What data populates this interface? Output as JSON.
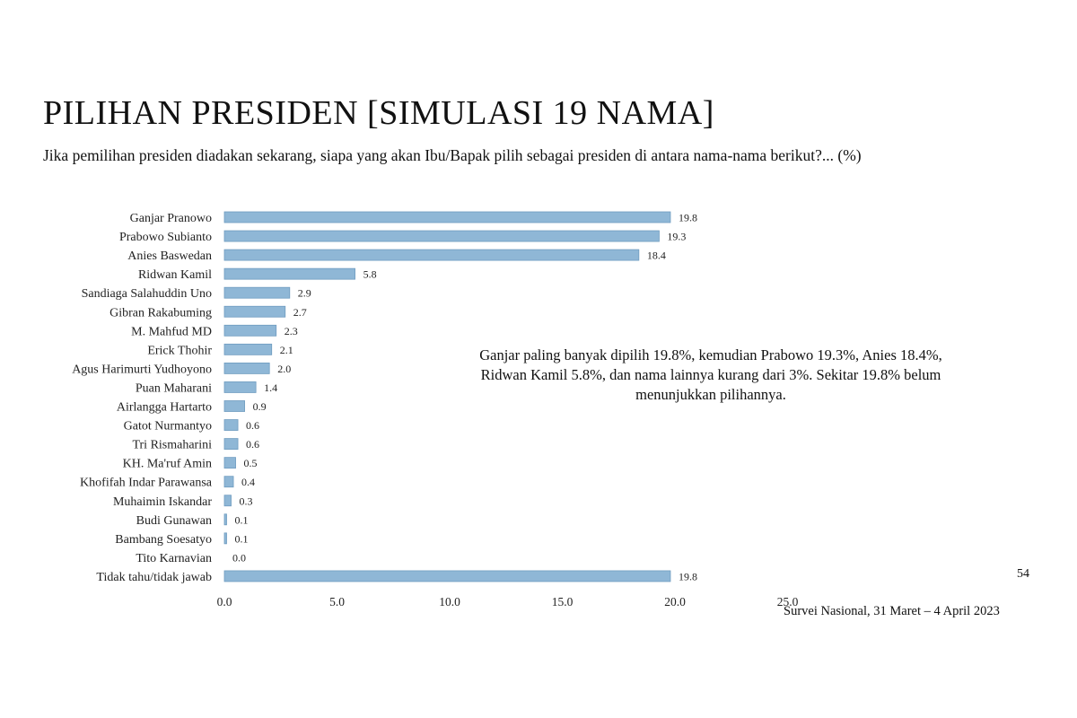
{
  "header": {
    "title": "PILIHAN PRESIDEN [SIMULASI 19 NAMA]",
    "subtitle": "Jika pemilihan presiden diadakan sekarang, siapa yang akan Ibu/Bapak pilih sebagai presiden di antara nama-nama berikut?... (%)"
  },
  "annotation": "Ganjar paling banyak dipilih 19.8%, kemudian Prabowo 19.3%, Anies 18.4%, Ridwan Kamil 5.8%, dan nama lainnya kurang dari 3%. Sekitar 19.8% belum menunjukkan pilihannya.",
  "footer": {
    "page_number": "54",
    "source": "Survei Nasional, 31 Maret – 4 April 2023"
  },
  "chart_data": {
    "type": "bar",
    "orientation": "horizontal",
    "categories": [
      "Ganjar Pranowo",
      "Prabowo Subianto",
      "Anies Baswedan",
      "Ridwan Kamil",
      "Sandiaga Salahuddin Uno",
      "Gibran Rakabuming",
      "M. Mahfud MD",
      "Erick Thohir",
      "Agus Harimurti Yudhoyono",
      "Puan Maharani",
      "Airlangga Hartarto",
      "Gatot Nurmantyo",
      "Tri Rismaharini",
      "KH. Ma'ruf Amin",
      "Khofifah Indar Parawansa",
      "Muhaimin Iskandar",
      "Budi Gunawan",
      "Bambang Soesatyo",
      "Tito Karnavian",
      "Tidak tahu/tidak jawab"
    ],
    "values": [
      19.8,
      19.3,
      18.4,
      5.8,
      2.9,
      2.7,
      2.3,
      2.1,
      2.0,
      1.4,
      0.9,
      0.6,
      0.6,
      0.5,
      0.4,
      0.3,
      0.1,
      0.1,
      0.0,
      19.8
    ],
    "value_labels": [
      "19.8",
      "19.3",
      "18.4",
      "5.8",
      "2.9",
      "2.7",
      "2.3",
      "2.1",
      "2.0",
      "1.4",
      "0.9",
      "0.6",
      "0.6",
      "0.5",
      "0.4",
      "0.3",
      "0.1",
      "0.1",
      "0.0",
      "19.8"
    ],
    "xlim": [
      0,
      25
    ],
    "ticks": [
      0,
      5,
      10,
      15,
      20,
      25
    ],
    "tick_labels": [
      "0.0",
      "5.0",
      "10.0",
      "15.0",
      "20.0",
      "25.0"
    ],
    "bar_color": "#8fb7d6",
    "bar_edge_color": "#6f9cc0",
    "grid": false,
    "legend": "none"
  }
}
